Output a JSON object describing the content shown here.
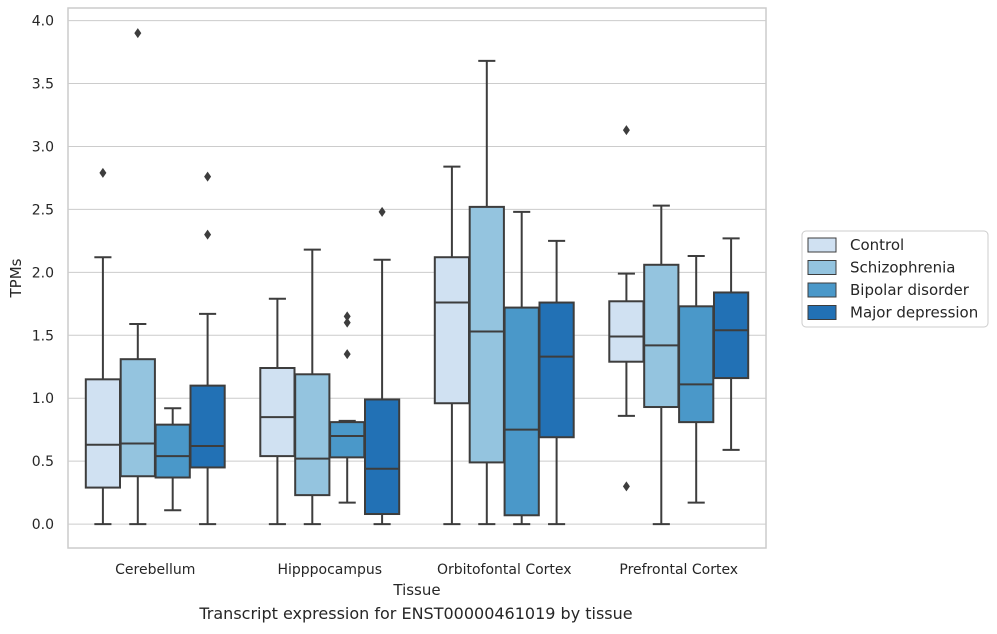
{
  "caption": "Transcript expression for ENST00000461019 by tissue",
  "chart_data": {
    "type": "box",
    "xlabel": "Tissue",
    "ylabel": "TPMs",
    "ylim": [
      -0.19,
      4.1
    ],
    "yticks": [
      0.0,
      0.5,
      1.0,
      1.5,
      2.0,
      2.5,
      3.0,
      3.5,
      4.0
    ],
    "ytick_labels": [
      "0.0",
      "0.5",
      "1.0",
      "1.5",
      "2.0",
      "2.5",
      "3.0",
      "3.5",
      "4.0"
    ],
    "grid": "horizontal",
    "legend_position": "right",
    "categories": [
      "Cerebellum",
      "Hipppocampus",
      "Orbitofontal Cortex",
      "Prefrontal Cortex"
    ],
    "series": [
      {
        "name": "Control",
        "color": "#d0e1f2",
        "boxes": [
          {
            "whislo": 0.0,
            "q1": 0.29,
            "med": 0.63,
            "q3": 1.15,
            "whishi": 2.12,
            "fliers": [
              2.79
            ]
          },
          {
            "whislo": 0.0,
            "q1": 0.54,
            "med": 0.85,
            "q3": 1.24,
            "whishi": 1.79,
            "fliers": []
          },
          {
            "whislo": 0.0,
            "q1": 0.96,
            "med": 1.76,
            "q3": 2.12,
            "whishi": 2.84,
            "fliers": []
          },
          {
            "whislo": 0.86,
            "q1": 1.29,
            "med": 1.49,
            "q3": 1.77,
            "whishi": 1.99,
            "fliers": [
              0.3,
              3.13
            ]
          }
        ]
      },
      {
        "name": "Schizophrenia",
        "color": "#94c4df",
        "boxes": [
          {
            "whislo": 0.0,
            "q1": 0.38,
            "med": 0.64,
            "q3": 1.31,
            "whishi": 1.59,
            "fliers": [
              3.9
            ]
          },
          {
            "whislo": 0.0,
            "q1": 0.23,
            "med": 0.52,
            "q3": 1.19,
            "whishi": 2.18,
            "fliers": []
          },
          {
            "whislo": 0.0,
            "q1": 0.49,
            "med": 1.53,
            "q3": 2.52,
            "whishi": 3.68,
            "fliers": []
          },
          {
            "whislo": 0.0,
            "q1": 0.93,
            "med": 1.42,
            "q3": 2.06,
            "whishi": 2.53,
            "fliers": []
          }
        ]
      },
      {
        "name": "Bipolar disorder",
        "color": "#4a98c9",
        "boxes": [
          {
            "whislo": 0.11,
            "q1": 0.37,
            "med": 0.54,
            "q3": 0.79,
            "whishi": 0.92,
            "fliers": []
          },
          {
            "whislo": 0.17,
            "q1": 0.53,
            "med": 0.7,
            "q3": 0.81,
            "whishi": 0.82,
            "fliers": [
              1.35,
              1.6,
              1.65
            ]
          },
          {
            "whislo": 0.0,
            "q1": 0.07,
            "med": 0.75,
            "q3": 1.72,
            "whishi": 2.48,
            "fliers": []
          },
          {
            "whislo": 0.17,
            "q1": 0.81,
            "med": 1.11,
            "q3": 1.73,
            "whishi": 2.13,
            "fliers": []
          }
        ]
      },
      {
        "name": "Major depression",
        "color": "#2271b5",
        "boxes": [
          {
            "whislo": 0.0,
            "q1": 0.45,
            "med": 0.62,
            "q3": 1.1,
            "whishi": 1.67,
            "fliers": [
              2.3,
              2.76
            ]
          },
          {
            "whislo": 0.0,
            "q1": 0.08,
            "med": 0.44,
            "q3": 0.99,
            "whishi": 2.1,
            "fliers": [
              2.48
            ]
          },
          {
            "whislo": 0.0,
            "q1": 0.69,
            "med": 1.33,
            "q3": 1.76,
            "whishi": 2.25,
            "fliers": []
          },
          {
            "whislo": 0.59,
            "q1": 1.16,
            "med": 1.54,
            "q3": 1.84,
            "whishi": 2.27,
            "fliers": []
          }
        ]
      }
    ]
  }
}
